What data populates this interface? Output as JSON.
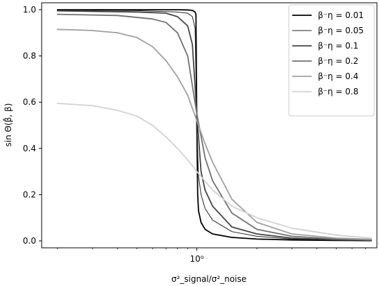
{
  "chart_data": {
    "type": "line",
    "title": "",
    "xlabel": "σ²_signal/σ²_noise",
    "ylabel": "sin Θ(β̂, β)",
    "xscale": "log",
    "xlim": [
      0.1667,
      8.0
    ],
    "ylim": [
      -0.03,
      1.03
    ],
    "grid": false,
    "legend_position": "top-right",
    "x_ticks": [
      {
        "value": 1.0,
        "label": "10⁰"
      }
    ],
    "y_ticks": [
      0.0,
      0.2,
      0.4,
      0.6,
      0.8,
      1.0
    ],
    "series": [
      {
        "name": "β⁻η = 0.01",
        "color": "#000000",
        "stroke_width": 1.8,
        "x": [
          0.2,
          0.5,
          0.8,
          0.9,
          0.95,
          0.98,
          0.99,
          1.0,
          1.01,
          1.02,
          1.05,
          1.1,
          1.2,
          1.5,
          2.0,
          3.0,
          5.0,
          7.5
        ],
        "y": [
          1.0,
          1.0,
          1.0,
          0.999,
          0.997,
          0.99,
          0.98,
          0.5,
          0.2,
          0.13,
          0.08,
          0.05,
          0.03,
          0.015,
          0.008,
          0.004,
          0.002,
          0.001
        ]
      },
      {
        "name": "β⁻η = 0.05",
        "color": "#222222",
        "stroke_width": 1.0,
        "x": [
          0.2,
          0.5,
          0.8,
          0.9,
          0.95,
          0.98,
          1.0,
          1.02,
          1.05,
          1.1,
          1.2,
          1.5,
          2.0,
          3.0,
          5.0,
          7.5
        ],
        "y": [
          0.998,
          0.996,
          0.99,
          0.985,
          0.97,
          0.92,
          0.5,
          0.28,
          0.2,
          0.14,
          0.09,
          0.04,
          0.02,
          0.008,
          0.004,
          0.002
        ]
      },
      {
        "name": "β⁻η = 0.1",
        "color": "#444444",
        "stroke_width": 1.8,
        "x": [
          0.2,
          0.5,
          0.7,
          0.8,
          0.9,
          0.95,
          1.0,
          1.05,
          1.1,
          1.2,
          1.5,
          2.0,
          3.0,
          5.0,
          7.5
        ],
        "y": [
          0.995,
          0.99,
          0.985,
          0.97,
          0.93,
          0.85,
          0.55,
          0.3,
          0.22,
          0.15,
          0.06,
          0.03,
          0.012,
          0.005,
          0.003
        ]
      },
      {
        "name": "β⁻η = 0.2",
        "color": "#707070",
        "stroke_width": 1.8,
        "x": [
          0.2,
          0.4,
          0.6,
          0.7,
          0.8,
          0.9,
          1.0,
          1.1,
          1.2,
          1.5,
          2.0,
          3.0,
          5.0,
          7.5
        ],
        "y": [
          0.98,
          0.975,
          0.96,
          0.945,
          0.9,
          0.8,
          0.55,
          0.36,
          0.26,
          0.12,
          0.05,
          0.02,
          0.008,
          0.004
        ]
      },
      {
        "name": "β⁻η = 0.4",
        "color": "#a0a0a0",
        "stroke_width": 1.8,
        "x": [
          0.2,
          0.3,
          0.4,
          0.5,
          0.6,
          0.7,
          0.8,
          0.9,
          1.0,
          1.1,
          1.2,
          1.5,
          2.0,
          3.0,
          5.0,
          7.5
        ],
        "y": [
          0.915,
          0.91,
          0.9,
          0.88,
          0.84,
          0.78,
          0.71,
          0.63,
          0.52,
          0.42,
          0.34,
          0.18,
          0.08,
          0.03,
          0.012,
          0.007
        ]
      },
      {
        "name": "β⁻η = 0.8",
        "color": "#d2d2d2",
        "stroke_width": 1.8,
        "x": [
          0.2,
          0.3,
          0.4,
          0.5,
          0.6,
          0.7,
          0.8,
          0.9,
          1.0,
          1.2,
          1.5,
          2.0,
          3.0,
          5.0,
          7.5
        ],
        "y": [
          0.595,
          0.585,
          0.565,
          0.54,
          0.5,
          0.45,
          0.4,
          0.35,
          0.3,
          0.22,
          0.15,
          0.1,
          0.055,
          0.025,
          0.012
        ]
      }
    ]
  }
}
